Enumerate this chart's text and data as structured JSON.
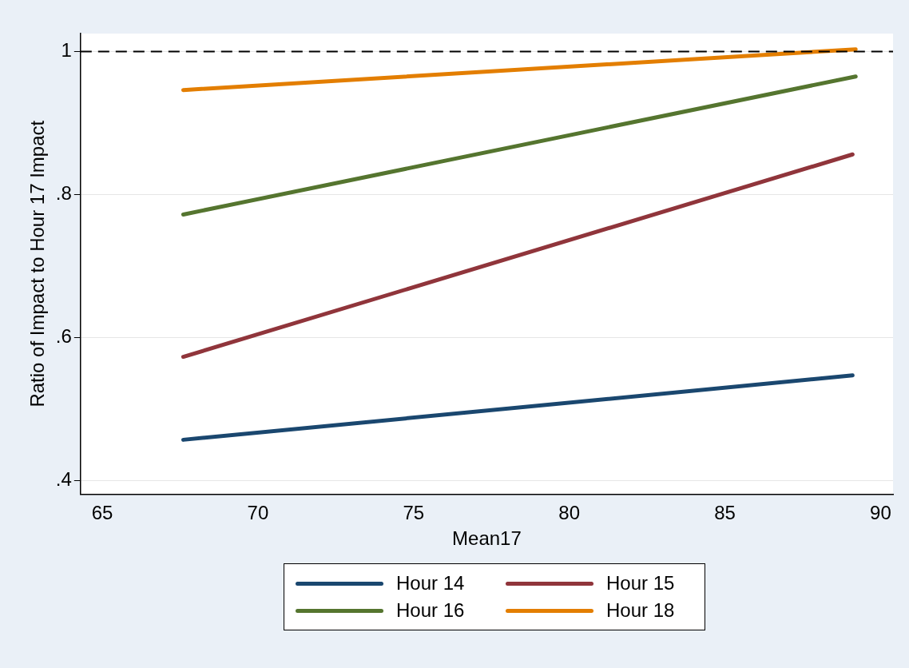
{
  "chart_data": {
    "type": "line",
    "xlabel": "Mean17",
    "ylabel": "Ratio of Impact to Hour 17 Impact",
    "xlim": [
      64.3,
      90.4
    ],
    "xticks": [
      65,
      70,
      75,
      80,
      85,
      90
    ],
    "ylim": [
      0.381,
      1.025
    ],
    "yticks": [
      {
        "value": 0.4,
        "label": ".4"
      },
      {
        "value": 0.6,
        "label": ".6"
      },
      {
        "value": 0.8,
        "label": ".8"
      },
      {
        "value": 1,
        "label": "1"
      }
    ],
    "grid": "y",
    "legend": "bottom",
    "marker": "none",
    "line_style": "solid",
    "ref_lines": [
      {
        "axis": "y",
        "value": 1,
        "label": null,
        "color": "#000000",
        "line_style": "dashed"
      }
    ],
    "series": [
      {
        "name": "Hour 14",
        "color": "#1a476f",
        "x": [
          67.6,
          89.1
        ],
        "values": [
          0.457,
          0.547
        ]
      },
      {
        "name": "Hour 15",
        "color": "#90353b",
        "x": [
          67.6,
          89.1
        ],
        "values": [
          0.573,
          0.856
        ]
      },
      {
        "name": "Hour 16",
        "color": "#55752f",
        "x": [
          67.6,
          89.2
        ],
        "values": [
          0.772,
          0.965
        ]
      },
      {
        "name": "Hour 18",
        "color": "#e37e00",
        "x": [
          67.6,
          89.2
        ],
        "values": [
          0.946,
          1.003
        ]
      }
    ]
  }
}
